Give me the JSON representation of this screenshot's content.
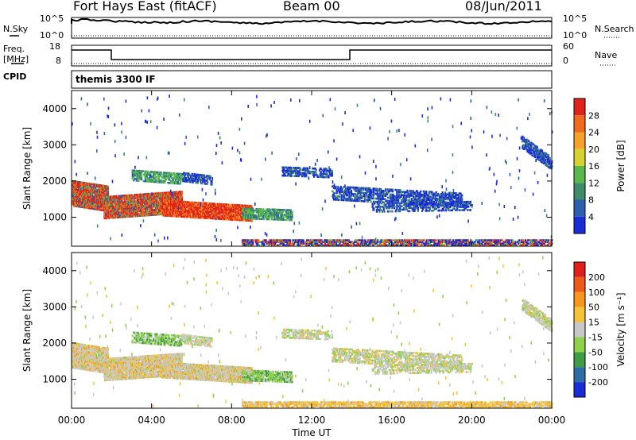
{
  "header": {
    "station": "Fort Hays East (fitACF)",
    "beam": "Beam 00",
    "date": "08/Jun/2011"
  },
  "aux_panels": {
    "nsky_label": "N.Sky",
    "nsearch_label": "N.Search",
    "top_axis_ticks": [
      "10^5",
      "10^0"
    ],
    "freq_label_top": "Freq.",
    "freq_label_unit": "[MHz]",
    "freq_ticks": [
      "18",
      "8"
    ],
    "nave_ticks": [
      "60",
      "0"
    ],
    "nave_label": "Nave",
    "cpid_label": "CPID",
    "cpid_value": "themis 3300 IF"
  },
  "chart_data": [
    {
      "type": "heatmap",
      "panel": "power",
      "ylabel": "Slant Range [km]",
      "y_ticks": [
        1000,
        2000,
        3000,
        4000
      ],
      "ylim": [
        200,
        4500
      ],
      "colorbar_label": "Power [dB]",
      "colorbar_ticks": [
        "4",
        "8",
        "12",
        "16",
        "20",
        "24",
        "28"
      ],
      "colorbar_colors": [
        "#1a2cd6",
        "#2e5fae",
        "#3e8c6a",
        "#57b84c",
        "#d6d233",
        "#f5a12b",
        "#f06a1e",
        "#e0231b"
      ]
    },
    {
      "type": "heatmap",
      "panel": "velocity",
      "ylabel": "Slant Range [km]",
      "y_ticks": [
        1000,
        2000,
        3000,
        4000
      ],
      "ylim": [
        200,
        4500
      ],
      "colorbar_label": "Velocity [m s⁻¹]",
      "colorbar_ticks": [
        "200",
        "100",
        "50",
        "15",
        "-15",
        "-50",
        "-100",
        "-200"
      ],
      "colorbar_colors": [
        "#1a2cd6",
        "#2e6ea6",
        "#3f9d43",
        "#8fd14a",
        "#c8c8c8",
        "#f5c33a",
        "#f5961f",
        "#ee5a1a",
        "#e0201a"
      ]
    }
  ],
  "time_axis": {
    "label": "Time UT",
    "ticks": [
      "00:00",
      "04:00",
      "08:00",
      "12:00",
      "16:00",
      "20:00",
      "00:00"
    ]
  }
}
